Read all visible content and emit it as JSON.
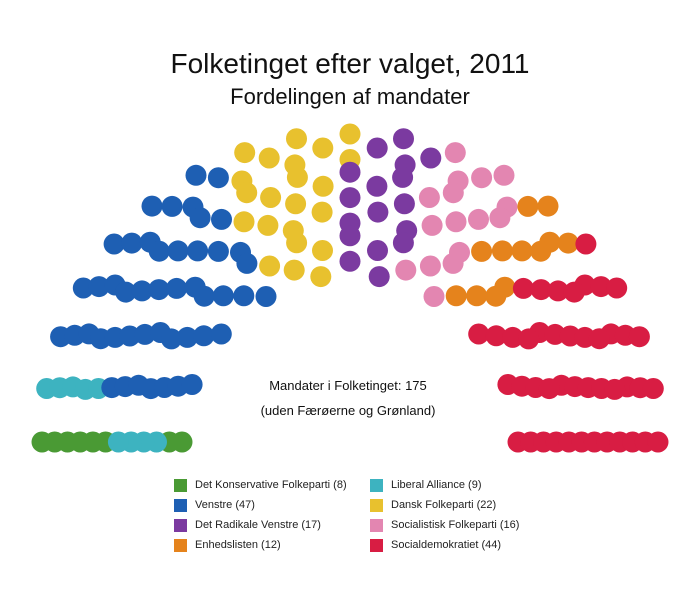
{
  "title": "Folketinget efter valget, 2011",
  "subtitle": "Fordelingen af mandater",
  "center_text": {
    "line1": "Mandater i Folketinget: 175",
    "line2": "(uden Færøerne og Grønland)"
  },
  "legend": [
    {
      "label": "Det Konservative Folkeparti (8)",
      "color": "#4a9a34"
    },
    {
      "label": "Liberal Alliance (9)",
      "color": "#3db3c0"
    },
    {
      "label": "Venstre (47)",
      "color": "#1e5fb3"
    },
    {
      "label": "Dansk Folkeparti (22)",
      "color": "#e8c12e"
    },
    {
      "label": "Det Radikale Venstre (17)",
      "color": "#7b3aa0"
    },
    {
      "label": "Socialistisk Folkeparti (16)",
      "color": "#e386b1"
    },
    {
      "label": "Enhedslisten (12)",
      "color": "#e5831c"
    },
    {
      "label": "Socialdemokratiet (44)",
      "color": "#d81d43"
    }
  ],
  "chart_data": {
    "type": "parliament",
    "title": "Folketinget efter valget, 2011",
    "subtitle": "Fordelingen af mandater",
    "total_seats": 175,
    "series": [
      {
        "name": "Det Konservative Folkeparti",
        "seats": 8,
        "color": "#4a9a34"
      },
      {
        "name": "Liberal Alliance",
        "seats": 9,
        "color": "#3db3c0"
      },
      {
        "name": "Venstre",
        "seats": 47,
        "color": "#1e5fb3"
      },
      {
        "name": "Dansk Folkeparti",
        "seats": 22,
        "color": "#e8c12e"
      },
      {
        "name": "Det Radikale Venstre",
        "seats": 17,
        "color": "#7b3aa0"
      },
      {
        "name": "Socialistisk Folkeparti",
        "seats": 16,
        "color": "#e386b1"
      },
      {
        "name": "Enhedslisten",
        "seats": 12,
        "color": "#e5831c"
      },
      {
        "name": "Socialdemokratiet",
        "seats": 44,
        "color": "#d81d43"
      }
    ]
  }
}
